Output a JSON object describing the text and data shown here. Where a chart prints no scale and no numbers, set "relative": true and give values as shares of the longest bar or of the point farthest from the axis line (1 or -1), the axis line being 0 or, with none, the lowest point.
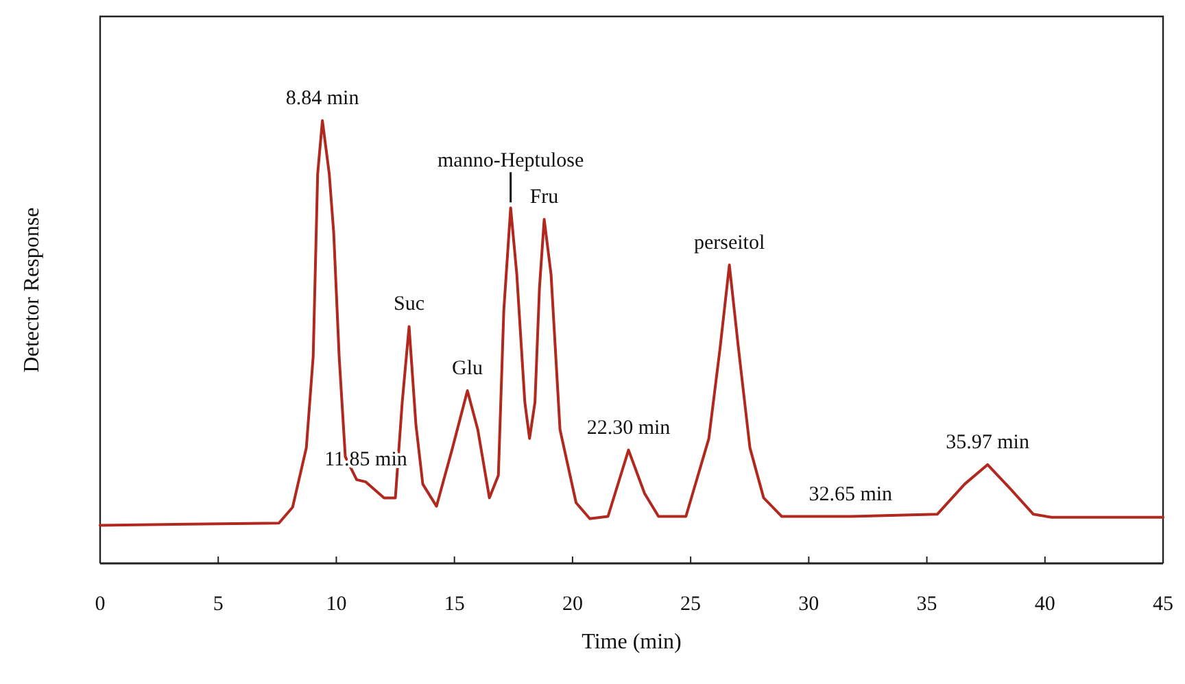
{
  "chart_data": {
    "type": "line",
    "relative": true,
    "xlabel": "Time (min)",
    "ylabel": "Detector Response",
    "xlim": [
      0,
      45
    ],
    "xticks": [
      0,
      5,
      10,
      15,
      20,
      25,
      30,
      35,
      40,
      45
    ],
    "grid": false,
    "marker": "none",
    "line_style": "solid",
    "series": [
      {
        "color": "#b0281e",
        "x": [
          0,
          7.57,
          8.15,
          8.73,
          9.02,
          9.21,
          9.41,
          9.7,
          9.89,
          10.12,
          10.38,
          10.86,
          11.25,
          12.02,
          12.5,
          12.79,
          13.08,
          13.37,
          13.66,
          14.24,
          14.92,
          15.55,
          15.99,
          16.48,
          16.86,
          17.09,
          17.38,
          17.64,
          17.98,
          18.18,
          18.41,
          18.6,
          18.8,
          19.09,
          19.47,
          20.15,
          20.73,
          21.5,
          22.37,
          23.05,
          23.64,
          24.8,
          25.77,
          26.25,
          26.64,
          27.02,
          27.51,
          28.09,
          28.86,
          31.77,
          35.44,
          36.6,
          37.57,
          38.54,
          39.51,
          40.28,
          45
        ],
        "values": [
          0.086,
          0.091,
          0.127,
          0.261,
          0.467,
          0.88,
          1,
          0.88,
          0.746,
          0.467,
          0.241,
          0.189,
          0.184,
          0.148,
          0.148,
          0.364,
          0.535,
          0.313,
          0.179,
          0.129,
          0.261,
          0.39,
          0.302,
          0.148,
          0.199,
          0.571,
          0.803,
          0.653,
          0.364,
          0.282,
          0.364,
          0.622,
          0.777,
          0.653,
          0.302,
          0.137,
          0.101,
          0.106,
          0.256,
          0.158,
          0.106,
          0.106,
          0.282,
          0.488,
          0.674,
          0.488,
          0.261,
          0.148,
          0.106,
          0.106,
          0.111,
          0.179,
          0.223,
          0.168,
          0.111,
          0.104,
          0.104
        ]
      }
    ],
    "annotations": [
      {
        "text": "8.84 min",
        "x": 9.41,
        "y": 1
      },
      {
        "text": "11.85 min",
        "x": 11.25,
        "y": 0.184
      },
      {
        "text": "Suc",
        "x": 13.08,
        "y": 0.535
      },
      {
        "text": "Glu",
        "x": 15.55,
        "y": 0.39
      },
      {
        "text": "manno-Heptulose",
        "x": 17.38,
        "y": 0.803
      },
      {
        "text": "Fru",
        "x": 18.8,
        "y": 0.777
      },
      {
        "text": "22.30 min",
        "x": 22.37,
        "y": 0.256
      },
      {
        "text": "perseitol",
        "x": 26.64,
        "y": 0.674
      },
      {
        "text": "32.65 min",
        "x": 31.77,
        "y": 0.106
      },
      {
        "text": "35.97 min",
        "x": 37.57,
        "y": 0.223
      }
    ]
  }
}
